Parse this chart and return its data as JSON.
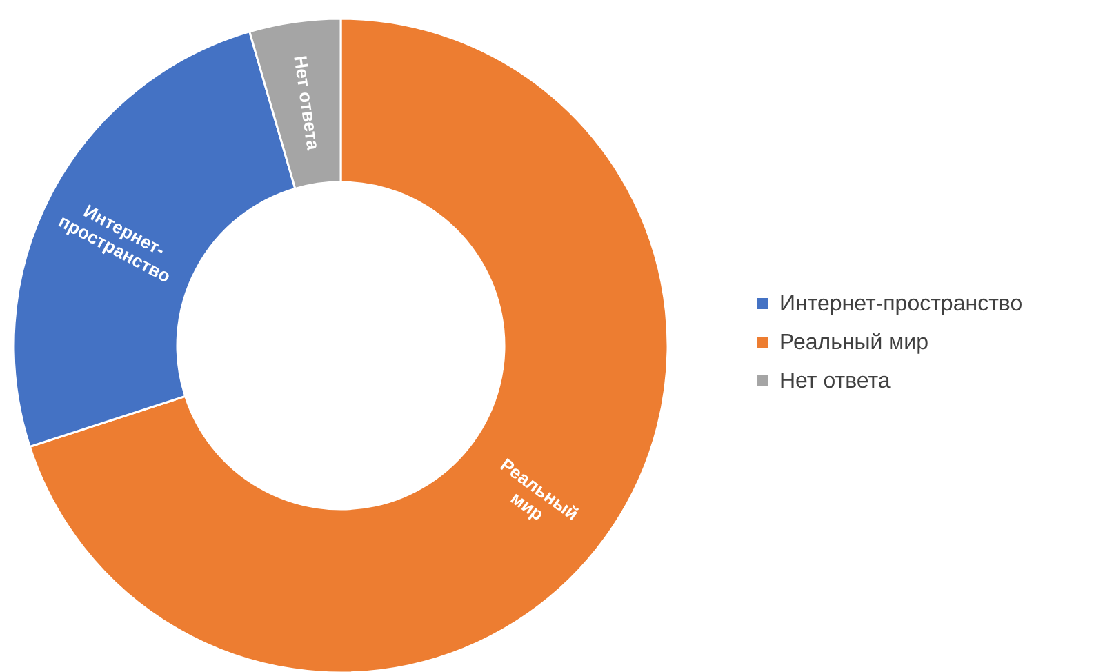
{
  "chart_data": {
    "type": "donut",
    "categories": [
      "Интернет-пространство",
      "Реальный мир",
      "Нет ответа"
    ],
    "values": [
      25.5,
      70,
      4.5
    ],
    "colors": [
      "#4472c4",
      "#ed7d31",
      "#a5a5a5"
    ],
    "legend": "right"
  }
}
